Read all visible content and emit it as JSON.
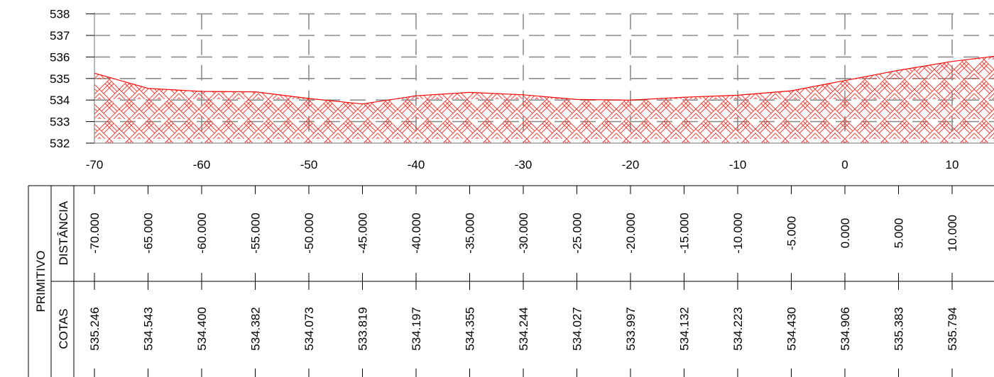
{
  "chart_data": {
    "type": "area",
    "title": "",
    "xlabel": "",
    "ylabel": "",
    "xlim": [
      -70,
      10
    ],
    "ylim": [
      532,
      538
    ],
    "x_ticks": [
      "-70",
      "-60",
      "-50",
      "-40",
      "-30",
      "-20",
      "-10",
      "0",
      "10"
    ],
    "y_ticks": [
      "532",
      "533",
      "534",
      "535",
      "536",
      "537",
      "538"
    ],
    "grid": "dashed",
    "fill_color": "#e8463c",
    "line_color": "#ff0000",
    "series": [
      {
        "x": [
          -70,
          -65,
          -60,
          -55,
          -50,
          -45,
          -40,
          -35,
          -30,
          -25,
          -20,
          -15,
          -10,
          -5,
          0,
          5,
          10,
          15
        ],
        "values": [
          535.246,
          534.543,
          534.4,
          534.382,
          534.073,
          533.819,
          534.197,
          534.355,
          534.244,
          534.027,
          533.997,
          534.132,
          534.223,
          534.43,
          534.906,
          535.383,
          535.794,
          536.1
        ]
      }
    ]
  },
  "table": {
    "group_label": "PRIMITIVO",
    "rows": [
      {
        "label": "DISTÂNCIA",
        "values": [
          "-70.000",
          "-65.000",
          "-60.000",
          "-55.000",
          "-50.000",
          "-45.000",
          "-40.000",
          "-35.000",
          "-30.000",
          "-25.000",
          "-20.000",
          "-15.000",
          "-10.000",
          "-5.000",
          "0.000",
          "5.000",
          "10.000"
        ]
      },
      {
        "label": "COTAS",
        "values": [
          "535.246",
          "534.543",
          "534.400",
          "534.382",
          "534.073",
          "533.819",
          "534.197",
          "534.355",
          "534.244",
          "534.027",
          "533.997",
          "534.132",
          "534.223",
          "534.430",
          "534.906",
          "535.383",
          "535.794"
        ]
      }
    ]
  }
}
